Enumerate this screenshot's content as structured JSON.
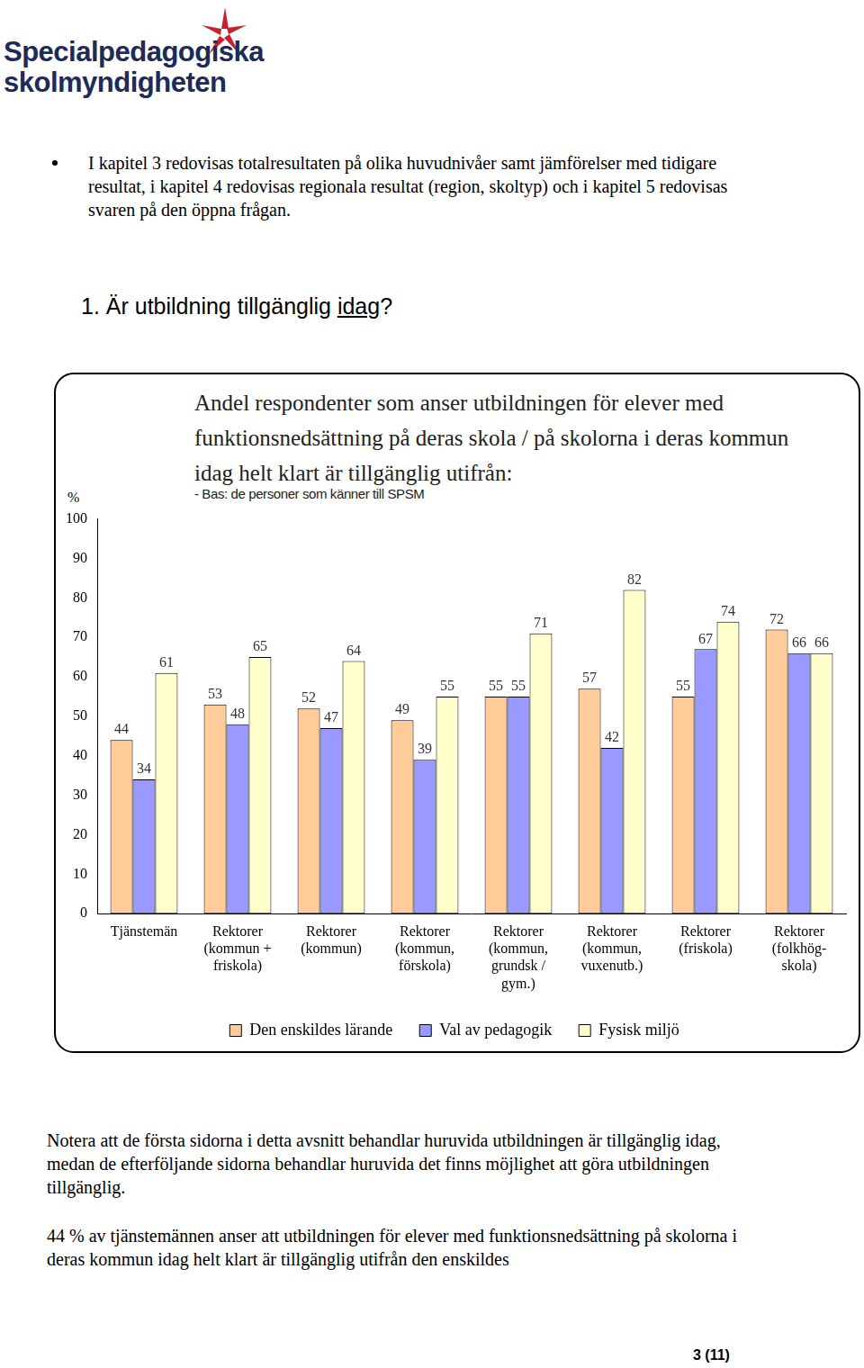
{
  "header": {
    "logo_line1": "Specialpedagogiska",
    "logo_line2": "skolmyndigheten"
  },
  "bullet": "I kapitel 3 redovisas totalresultaten på olika huvudnivåer samt jämförelser med tidigare resultat, i kapitel 4 redovisas regionala resultat (region, skoltyp) och i kapitel 5 redovisas svaren på den öppna frågan.",
  "heading": [
    {
      "text": "1. Är utbildning tillgänglig "
    },
    {
      "text": "idag",
      "underline": true
    },
    {
      "text": "?"
    }
  ],
  "chart_data": {
    "type": "bar",
    "title": "Andel respondenter som anser utbildningen för elever med funktionsnedsättning på deras skola / på skolorna i deras kommun idag helt klart är tillgänglig utifrån:",
    "subtitle": "- Bas: de personer som känner till SPSM",
    "y_label": "%",
    "categories": [
      [
        "Tjänstemän"
      ],
      [
        "Rektorer",
        "(kommun +",
        "friskola)"
      ],
      [
        "Rektorer",
        "(kommun)"
      ],
      [
        "Rektorer",
        "(kommun,",
        "förskola)"
      ],
      [
        "Rektorer",
        "(kommun,",
        "grundsk /",
        "gym.)"
      ],
      [
        "Rektorer",
        "(kommun,",
        "vuxenutb.)"
      ],
      [
        "Rektorer",
        "(friskola)"
      ],
      [
        "Rektorer",
        "(folkhög-",
        "skola)"
      ]
    ],
    "series": [
      {
        "name": "Den enskildes lärande",
        "color": "#ffcc99",
        "values": [
          44,
          53,
          52,
          49,
          55,
          57,
          55,
          72
        ]
      },
      {
        "name": "Val av pedagogik",
        "color": "#9999ff",
        "values": [
          34,
          48,
          47,
          39,
          55,
          42,
          67,
          66
        ]
      },
      {
        "name": "Fysisk miljö",
        "color": "#ffffcc",
        "values": [
          61,
          65,
          64,
          55,
          71,
          82,
          74,
          66
        ]
      }
    ],
    "ylim": [
      0,
      100
    ],
    "yticks": [
      0,
      10,
      20,
      30,
      40,
      50,
      60,
      70,
      80,
      90,
      100
    ],
    "grid": false,
    "legend": "bottom",
    "data_labels": true
  },
  "notes": [
    "Notera att de första sidorna i detta avsnitt behandlar huruvida utbildningen är tillgänglig idag, medan de efterföljande sidorna behandlar huruvida det finns möjlighet att göra utbildningen tillgänglig.",
    "44 % av tjänstemännen anser att utbildningen för elever med funktionsnedsättning på skolorna i deras kommun idag helt klart är tillgänglig utifrån den enskildes"
  ],
  "page_number": "3 (11)"
}
